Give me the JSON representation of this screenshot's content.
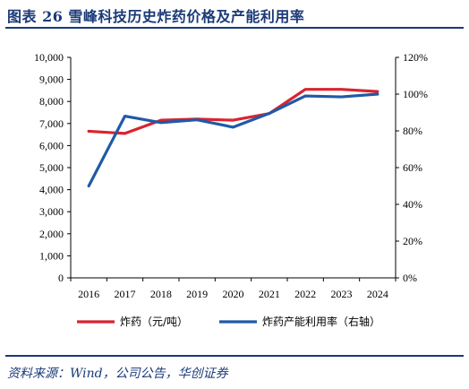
{
  "title": "图表 26  雪峰科技历史炸药价格及产能利用率",
  "source": "资料来源：Wind，公司公告，华创证券",
  "chart_data": {
    "type": "line",
    "categories": [
      "2016",
      "2017",
      "2018",
      "2019",
      "2020",
      "2021",
      "2022",
      "2023",
      "2024"
    ],
    "series": [
      {
        "name": "炸药（元/吨）",
        "axis": "left",
        "color": "#d9242f",
        "values": [
          6650,
          6550,
          7150,
          7200,
          7150,
          7450,
          8550,
          8550,
          8450
        ]
      },
      {
        "name": "炸药产能利用率（右轴）",
        "axis": "right",
        "color": "#1f5aa6",
        "values": [
          50,
          88,
          84.5,
          86,
          82,
          89.5,
          99,
          98.5,
          100
        ]
      }
    ],
    "y_left": {
      "ylim": [
        0,
        10000
      ],
      "ticks": [
        0,
        1000,
        2000,
        3000,
        4000,
        5000,
        6000,
        7000,
        8000,
        9000,
        10000
      ],
      "tick_labels": [
        "0",
        "1,000",
        "2,000",
        "3,000",
        "4,000",
        "5,000",
        "6,000",
        "7,000",
        "8,000",
        "9,000",
        "10,000"
      ]
    },
    "y_right": {
      "ylim": [
        0,
        120
      ],
      "ticks": [
        0,
        20,
        40,
        60,
        80,
        100,
        120
      ],
      "tick_labels": [
        "0%",
        "20%",
        "40%",
        "60%",
        "80%",
        "100%",
        "120%"
      ]
    },
    "legend_position": "bottom",
    "grid": false
  }
}
